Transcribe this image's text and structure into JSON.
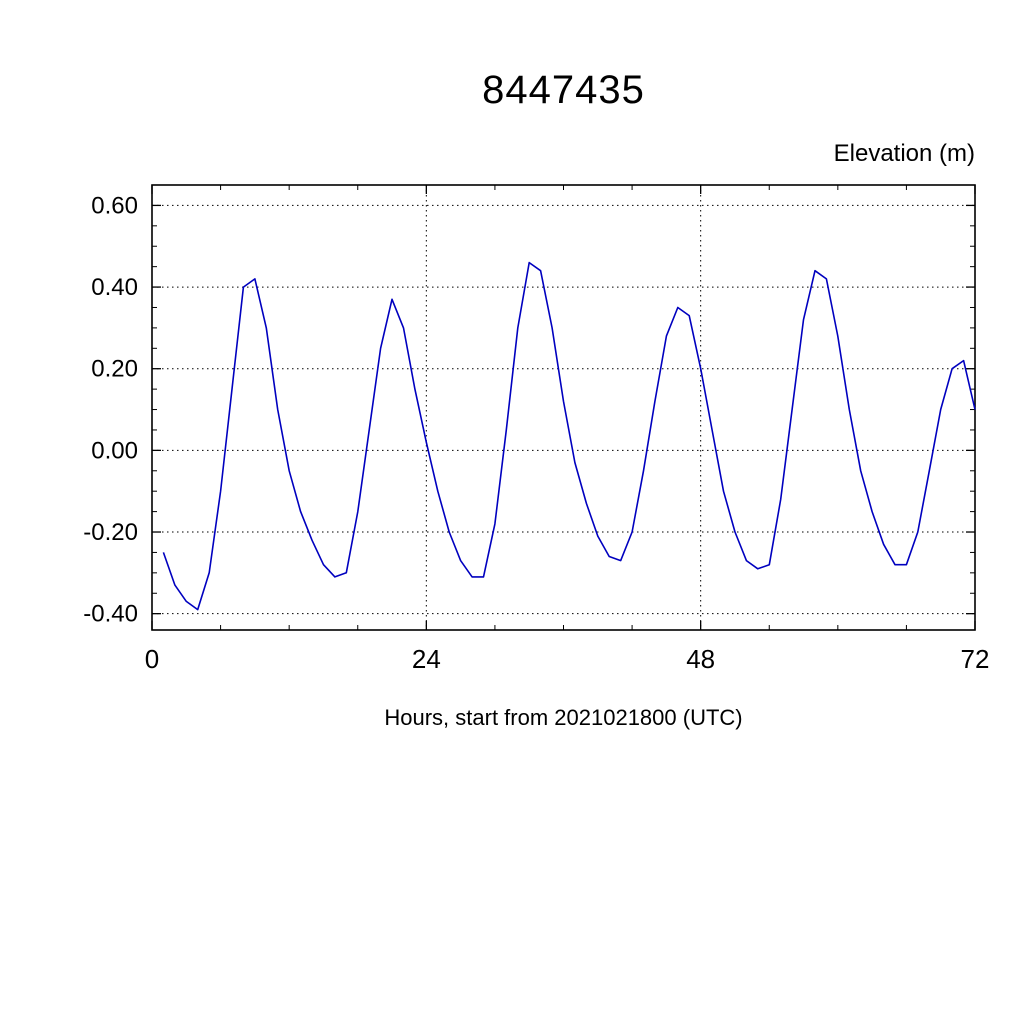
{
  "page": {
    "title": "8447435",
    "y_axis_label": "Elevation (m)",
    "x_axis_label": "Hours, start from 2021021800 (UTC)"
  },
  "chart_data": {
    "type": "line",
    "title": "8447435",
    "xlabel": "Hours, start from 2021021800 (UTC)",
    "ylabel": "Elevation (m)",
    "xlim": [
      0,
      72
    ],
    "ylim": [
      -0.44,
      0.65
    ],
    "x_ticks": [
      0,
      24,
      48,
      72
    ],
    "x_tick_labels": [
      "0",
      "24",
      "48",
      "72"
    ],
    "x_minor_step": 6,
    "y_ticks": [
      0.6,
      0.4,
      0.2,
      0.0,
      -0.2,
      -0.4
    ],
    "y_tick_labels": [
      "0.60",
      "0.40",
      "0.20",
      "0.00",
      "-0.20",
      "-0.40"
    ],
    "y_minor_step": 0.05,
    "grid": true,
    "legend_position": "none",
    "line_color": "#0000bf",
    "series": [
      {
        "name": "elevation",
        "x": [
          1,
          2,
          3,
          4,
          5,
          6,
          7,
          8,
          9,
          10,
          11,
          12,
          13,
          14,
          15,
          16,
          17,
          18,
          19,
          20,
          21,
          22,
          23,
          24,
          25,
          26,
          27,
          28,
          29,
          30,
          31,
          32,
          33,
          34,
          35,
          36,
          37,
          38,
          39,
          40,
          41,
          42,
          43,
          44,
          45,
          46,
          47,
          48,
          49,
          50,
          51,
          52,
          53,
          54,
          55,
          56,
          57,
          58,
          59,
          60,
          61,
          62,
          63,
          64,
          65,
          66,
          67,
          68,
          69,
          70,
          71,
          72
        ],
        "y": [
          -0.25,
          -0.33,
          -0.37,
          -0.39,
          -0.3,
          -0.1,
          0.15,
          0.4,
          0.42,
          0.3,
          0.1,
          -0.05,
          -0.15,
          -0.22,
          -0.28,
          -0.31,
          -0.3,
          -0.15,
          0.05,
          0.25,
          0.37,
          0.3,
          0.15,
          0.02,
          -0.1,
          -0.2,
          -0.27,
          -0.31,
          -0.31,
          -0.18,
          0.05,
          0.3,
          0.46,
          0.44,
          0.3,
          0.12,
          -0.03,
          -0.13,
          -0.21,
          -0.26,
          -0.27,
          -0.2,
          -0.05,
          0.12,
          0.28,
          0.35,
          0.33,
          0.2,
          0.05,
          -0.1,
          -0.2,
          -0.27,
          -0.29,
          -0.28,
          -0.12,
          0.1,
          0.32,
          0.44,
          0.42,
          0.28,
          0.1,
          -0.05,
          -0.15,
          -0.23,
          -0.28,
          -0.28,
          -0.2,
          -0.05,
          0.1,
          0.2,
          0.22,
          0.1
        ]
      }
    ]
  }
}
